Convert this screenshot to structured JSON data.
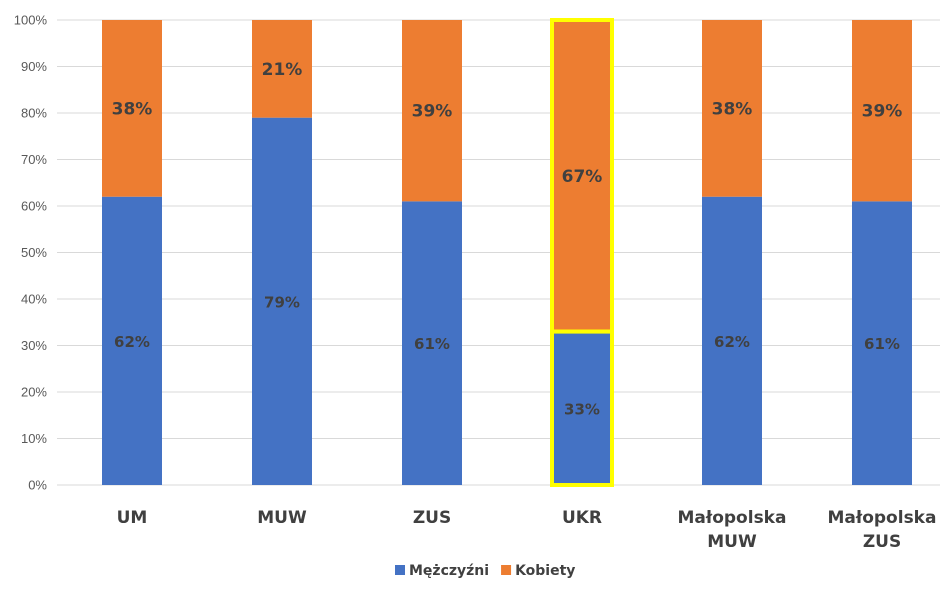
{
  "chart_data": {
    "type": "bar",
    "stacked": true,
    "categories": [
      [
        "UM"
      ],
      [
        "MUW"
      ],
      [
        "ZUS"
      ],
      [
        "UKR"
      ],
      [
        "Małopolska",
        "MUW"
      ],
      [
        "Małopolska",
        "ZUS"
      ]
    ],
    "series": [
      {
        "name": "Mężczyźni",
        "color": "#4472C4",
        "values": [
          62,
          79,
          61,
          33,
          62,
          61
        ],
        "labels": [
          "62%",
          "79%",
          "61%",
          "33%",
          "62%",
          "61%"
        ]
      },
      {
        "name": "Kobiety",
        "color": "#ED7D31",
        "values": [
          38,
          21,
          39,
          67,
          38,
          39
        ],
        "labels": [
          "38%",
          "21%",
          "39%",
          "67%",
          "38%",
          "39%"
        ]
      }
    ],
    "ylim": [
      0,
      100
    ],
    "yticks": [
      "0%",
      "10%",
      "20%",
      "30%",
      "40%",
      "50%",
      "60%",
      "70%",
      "80%",
      "90%",
      "100%"
    ],
    "grid": true,
    "legend": "bottom-center",
    "highlighted_category": 3,
    "highlight_color": "#FFFF00",
    "title": "",
    "xlabel": "",
    "ylabel": ""
  }
}
